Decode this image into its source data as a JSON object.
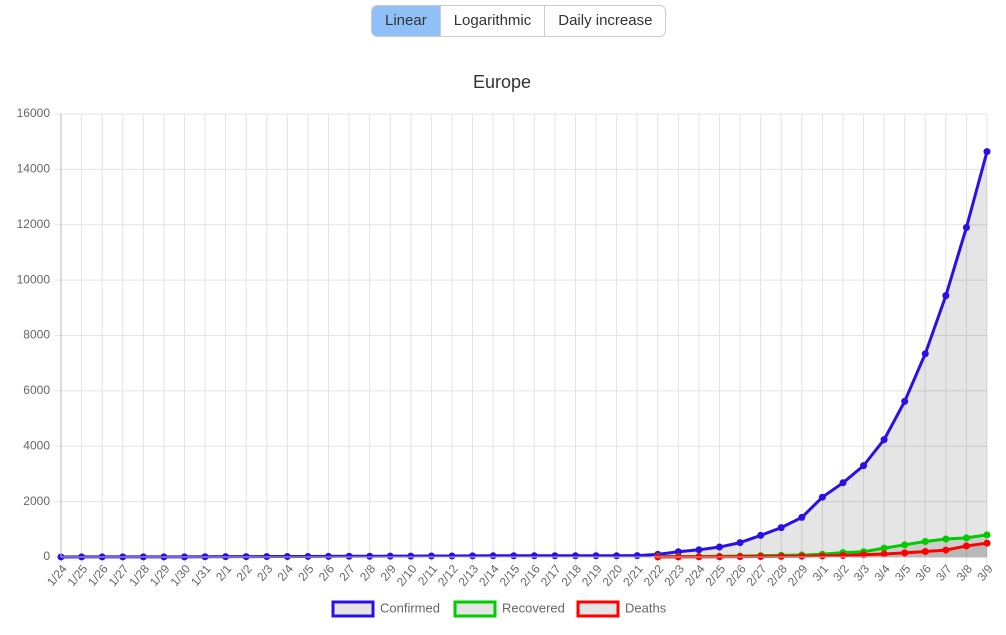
{
  "controls": {
    "buttons": [
      "Linear",
      "Logarithmic",
      "Daily increase"
    ],
    "active": 0
  },
  "chart_data": {
    "type": "line",
    "title": "Europe",
    "categories": [
      "1/24",
      "1/25",
      "1/26",
      "1/27",
      "1/28",
      "1/29",
      "1/30",
      "1/31",
      "2/1",
      "2/2",
      "2/3",
      "2/4",
      "2/5",
      "2/6",
      "2/7",
      "2/8",
      "2/9",
      "2/10",
      "2/11",
      "2/12",
      "2/13",
      "2/14",
      "2/15",
      "2/16",
      "2/17",
      "2/18",
      "2/19",
      "2/20",
      "2/21",
      "2/22",
      "2/23",
      "2/24",
      "2/25",
      "2/26",
      "2/27",
      "2/28",
      "2/29",
      "3/1",
      "3/2",
      "3/3",
      "3/4",
      "3/5",
      "3/6",
      "3/7",
      "3/8",
      "3/9"
    ],
    "series": [
      {
        "name": "Confirmed",
        "color": "#2b0fe8",
        "values": [
          2,
          3,
          3,
          4,
          5,
          5,
          5,
          8,
          13,
          14,
          16,
          18,
          20,
          23,
          26,
          28,
          30,
          32,
          36,
          38,
          40,
          43,
          44,
          45,
          45,
          45,
          46,
          46,
          50,
          95,
          190,
          260,
          360,
          520,
          780,
          1060,
          1430,
          2160,
          2680,
          3300,
          4240,
          5620,
          7340,
          9440,
          11900,
          14640
        ]
      },
      {
        "name": "Recovered",
        "color": "#00cc00",
        "values": [
          null,
          null,
          null,
          null,
          null,
          null,
          null,
          null,
          null,
          null,
          null,
          null,
          null,
          null,
          null,
          null,
          null,
          null,
          null,
          null,
          null,
          null,
          null,
          null,
          null,
          null,
          null,
          null,
          null,
          16,
          16,
          20,
          25,
          30,
          50,
          60,
          70,
          100,
          160,
          190,
          320,
          440,
          560,
          650,
          690,
          800
        ]
      },
      {
        "name": "Deaths",
        "color": "#ff0000",
        "values": [
          null,
          null,
          null,
          null,
          null,
          null,
          null,
          null,
          null,
          null,
          null,
          null,
          null,
          null,
          null,
          null,
          null,
          null,
          null,
          null,
          null,
          null,
          null,
          null,
          null,
          null,
          null,
          null,
          null,
          2,
          3,
          6,
          10,
          12,
          17,
          21,
          29,
          38,
          55,
          80,
          110,
          150,
          200,
          250,
          400,
          500
        ]
      }
    ],
    "ylim": [
      0,
      16000
    ],
    "yticks": [
      0,
      2000,
      4000,
      6000,
      8000,
      10000,
      12000,
      14000,
      16000
    ],
    "grid": true,
    "fill": "rgba(0,0,0,0.1)",
    "legend": "bottom"
  }
}
